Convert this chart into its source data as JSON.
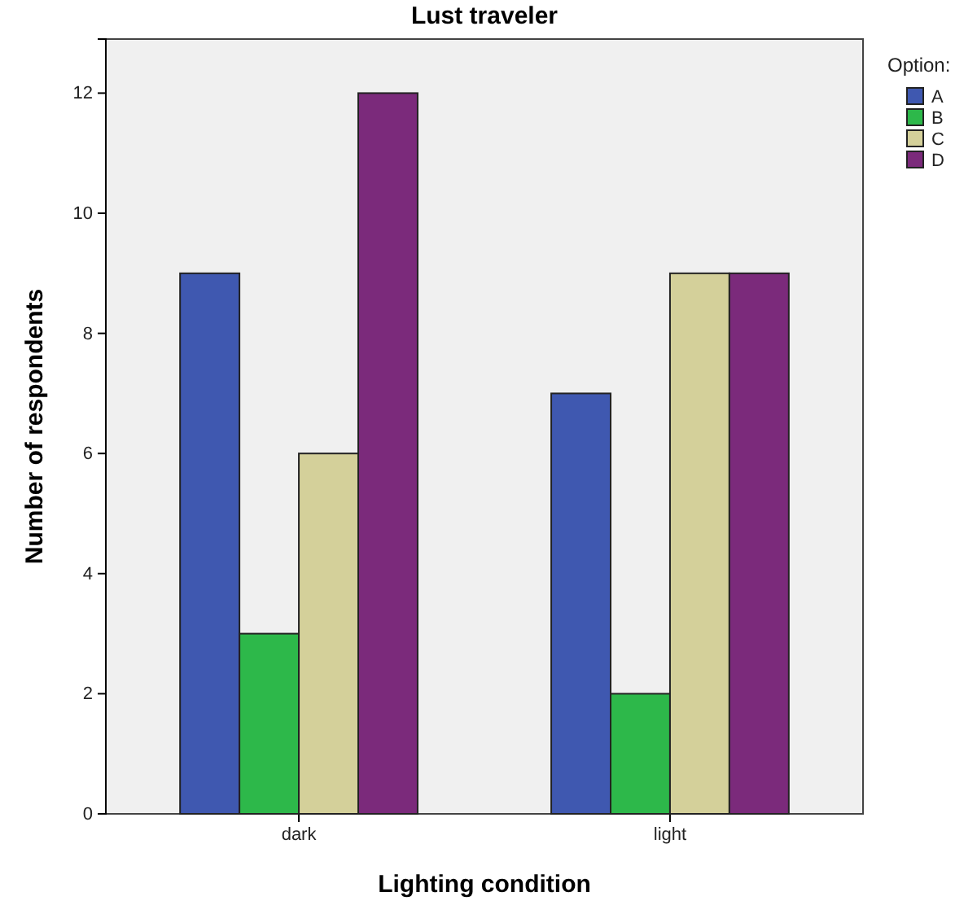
{
  "chart_data": {
    "type": "bar",
    "title": "Lust traveler",
    "xlabel": "Lighting condition",
    "ylabel": "Number of respondents",
    "legend_title": "Option:",
    "categories": [
      "dark",
      "light"
    ],
    "series": [
      {
        "name": "A",
        "color": "#3f58b0",
        "values": [
          9,
          7
        ]
      },
      {
        "name": "B",
        "color": "#2db84a",
        "values": [
          3,
          2
        ]
      },
      {
        "name": "C",
        "color": "#d4d09a",
        "values": [
          6,
          9
        ]
      },
      {
        "name": "D",
        "color": "#7b2a7b",
        "values": [
          12,
          9
        ]
      }
    ],
    "ylim": [
      0,
      12.9
    ],
    "yticks": [
      0,
      2,
      4,
      6,
      8,
      10,
      12
    ],
    "grid": false,
    "legend": "top right"
  }
}
